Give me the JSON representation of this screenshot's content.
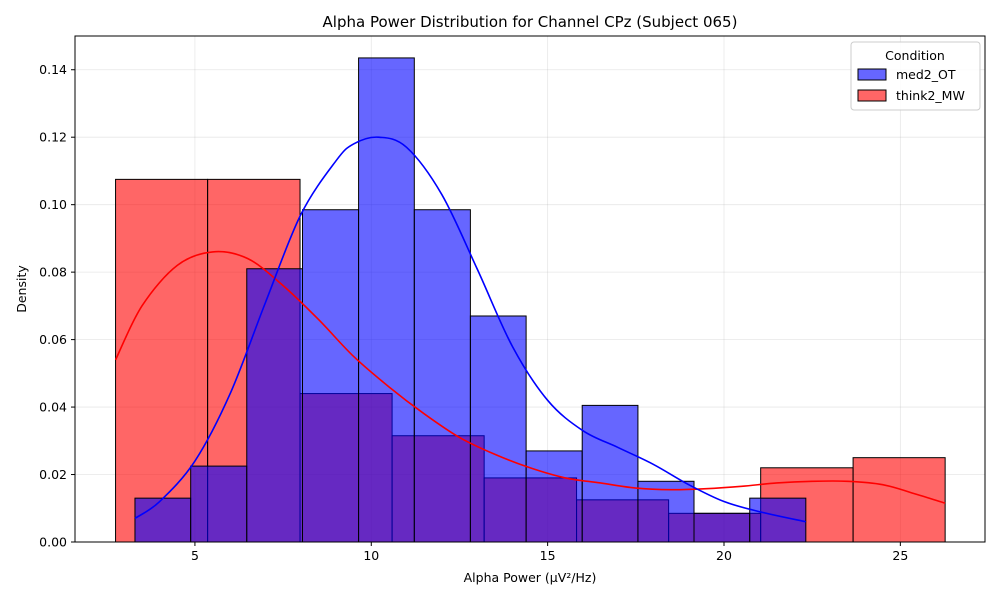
{
  "chart_data": {
    "type": "histogram",
    "title": "Alpha Power Distribution for Channel CPz (Subject 065)",
    "xlabel": "Alpha Power (µV²/Hz)",
    "ylabel": "Density",
    "xlim": [
      1.6,
      27.4
    ],
    "ylim": [
      0,
      0.15
    ],
    "xticks": [
      5,
      10,
      15,
      20,
      25
    ],
    "xtick_labels": [
      "5",
      "10",
      "15",
      "20",
      "25"
    ],
    "yticks": [
      0,
      0.02,
      0.04,
      0.06,
      0.08,
      0.1,
      0.12,
      0.14
    ],
    "ytick_labels": [
      "0.00",
      "0.02",
      "0.04",
      "0.06",
      "0.08",
      "0.10",
      "0.12",
      "0.14"
    ],
    "grid": true,
    "legend": {
      "title": "Condition",
      "position": "top-right"
    },
    "series": [
      {
        "name": "think2_MW",
        "color": "#ff0000",
        "alpha": 0.6,
        "bin_edges": [
          2.75,
          5.36,
          7.98,
          10.59,
          13.2,
          15.82,
          18.43,
          21.04,
          23.66,
          26.27
        ],
        "density": [
          0.1075,
          0.1075,
          0.044,
          0.0315,
          0.019,
          0.0125,
          0.0085,
          0.022,
          0.025
        ],
        "kde": {
          "x": [
            2.75,
            3.5,
            4.5,
            5.5,
            6.5,
            7.5,
            8.5,
            9.5,
            10.5,
            11.5,
            12.5,
            13.5,
            14.5,
            15.5,
            16.5,
            17.5,
            18.5,
            19.5,
            20.5,
            21.5,
            22.5,
            23.5,
            24.5,
            25.5,
            26.27
          ],
          "y": [
            0.054,
            0.07,
            0.082,
            0.086,
            0.084,
            0.076,
            0.066,
            0.055,
            0.046,
            0.038,
            0.031,
            0.026,
            0.022,
            0.019,
            0.0175,
            0.016,
            0.0155,
            0.0158,
            0.0165,
            0.0175,
            0.018,
            0.018,
            0.017,
            0.014,
            0.0115
          ]
        }
      },
      {
        "name": "med2_OT",
        "color": "#0000ff",
        "alpha": 0.6,
        "bin_edges": [
          3.3,
          4.88,
          6.47,
          8.05,
          9.64,
          11.22,
          12.81,
          14.39,
          15.98,
          17.56,
          19.15,
          20.73,
          22.32
        ],
        "density": [
          0.013,
          0.0225,
          0.081,
          0.0985,
          0.1435,
          0.0985,
          0.067,
          0.027,
          0.0405,
          0.018,
          0.0085,
          0.013
        ],
        "kde": {
          "x": [
            3.3,
            4.0,
            5.0,
            6.0,
            7.0,
            8.0,
            9.0,
            9.5,
            10.2,
            11.0,
            12.0,
            13.0,
            14.0,
            15.0,
            16.0,
            17.0,
            18.0,
            19.0,
            20.0,
            21.0,
            22.32
          ],
          "y": [
            0.007,
            0.012,
            0.024,
            0.044,
            0.071,
            0.097,
            0.113,
            0.118,
            0.12,
            0.117,
            0.103,
            0.081,
            0.058,
            0.042,
            0.033,
            0.028,
            0.023,
            0.017,
            0.012,
            0.009,
            0.006
          ]
        }
      }
    ]
  }
}
